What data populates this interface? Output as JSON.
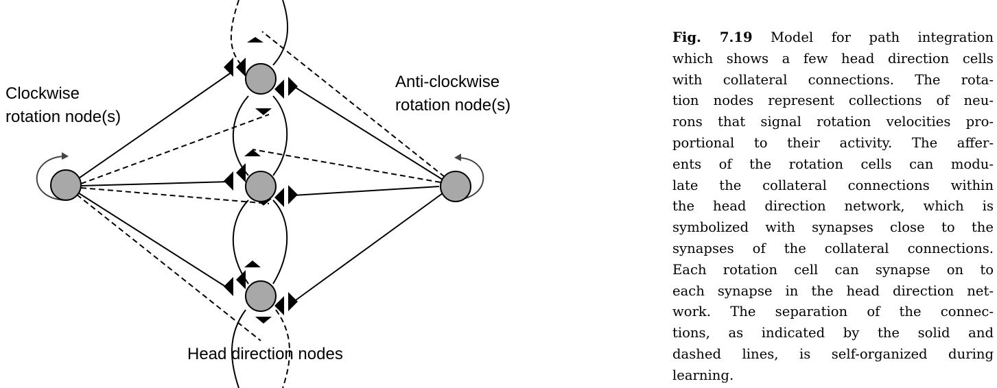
{
  "labels": {
    "clockwise_line1": "Clockwise",
    "clockwise_line2": "rotation node(s)",
    "anticlockwise_line1": "Anti-clockwise",
    "anticlockwise_line2": "rotation node(s)",
    "head_direction": "Head direction nodes"
  },
  "caption": {
    "label": "Fig. 7.19",
    "lines": [
      "Model for path integration",
      "which shows a few head direction cells",
      "with collateral connections.  The rota-",
      "tion nodes represent collections of neu-",
      "rons that signal rotation velocities pro-",
      "portional to their activity.  The affer-",
      "ents of the rotation cells can modu-",
      "late the collateral connections within",
      "the head direction network, which is",
      "symbolized with synapses close to the",
      "synapses of the collateral connections.",
      "Each rotation cell can synapse on to",
      "each synapse in the head direction net-",
      "work.  The separation of the connec-",
      "tions, as indicated by the solid and",
      "dashed lines, is self-organized during",
      "learning."
    ]
  },
  "colors": {
    "node_fill": "#a8a8a8",
    "stroke": "#000000",
    "rotation_arrow": "#444444"
  }
}
